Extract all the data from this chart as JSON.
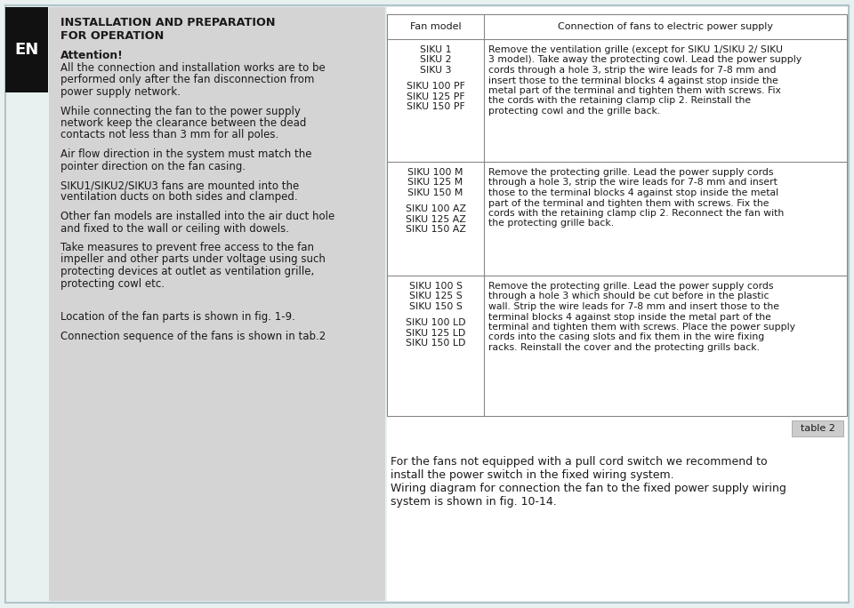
{
  "bg_color": "#d4d4d4",
  "outer_bg": "#e8f0f0",
  "table_bg": "#ffffff",
  "border_color": "#b0c4c8",
  "text_color": "#1a1a1a",
  "left_title_line1": "INSTALLATION AND PREPARATION",
  "left_title_line2": "FOR OPERATION",
  "attention_title": "Attention!",
  "attention_lines": [
    "All the connection and installation works are to be",
    "performed only after the fan disconnection from",
    "power supply network."
  ],
  "para1_lines": [
    "While connecting the fan to the power supply",
    "network keep the clearance between the dead",
    "contacts not less than 3 mm for all poles."
  ],
  "para2_lines": [
    "Air flow direction in the system must match the",
    "pointer direction on the fan casing."
  ],
  "para3_lines": [
    "SIKU1/SIKU2/SIKU3 fans are mounted into the",
    "ventilation ducts on both sides and clamped."
  ],
  "para4_lines": [
    "Other fan models are installed into the air duct hole",
    "and fixed to the wall or ceiling with dowels."
  ],
  "para5_lines": [
    "Take measures to prevent free access to the fan",
    "impeller and other parts under voltage using such",
    "protecting devices at outlet as ventilation grille,",
    "protecting cowl etc."
  ],
  "para6": "Location of the fan parts is shown in fig. 1-9.",
  "para7": "Connection sequence of the fans is shown in tab.2",
  "table_header_col1": "Fan model",
  "table_header_col2": "Connection of fans to electric power supply",
  "row1_models": [
    "SIKU 1",
    "SIKU 2",
    "SIKU 3",
    "",
    "SIKU 100 PF",
    "SIKU 125 PF",
    "SIKU 150 PF"
  ],
  "row1_text": "Remove the ventilation grille (except for SIKU 1/SIKU 2/ SIKU 3 model). Take away the protecting cowl. Lead the power supply cords through a hole 3, strip the wire leads for 7-8 mm and insert those to the terminal blocks 4 against stop inside the metal part of the terminal and tighten them with screws. Fix the cords with the retaining clamp clip 2. Reinstall the protecting cowl and the grille back.",
  "row2_models": [
    "SIKU 100 M",
    "SIKU 125 M",
    "SIKU 150 M",
    "",
    "SIKU 100 AZ",
    "SIKU 125 AZ",
    "SIKU 150 AZ"
  ],
  "row2_text": "Remove the protecting grille. Lead the power supply cords through a hole 3, strip the wire leads for 7-8 mm  and insert those to the terminal blocks 4 against stop inside the metal part of the terminal and tighten them with screws. Fix the cords with the retaining clamp clip 2. Reconnect the fan with the protecting grille back.",
  "row3_models": [
    "SIKU 100 S",
    "SIKU 125 S",
    "SIKU 150 S",
    "",
    "SIKU 100 LD",
    "SIKU 125 LD",
    "SIKU 150 LD"
  ],
  "row3_text": "Remove the protecting grille. Lead the power supply cords through a hole 3 which should be cut before in the plastic wall. Strip the wire leads for 7-8 mm  and insert those to the terminal blocks 4 against stop inside the metal part of the terminal and tighten them with screws. Place the power supply cords into the casing slots and fix them in the wire fixing racks. Reinstall the cover and the protecting grills back.",
  "table2_label": "table 2",
  "bottom_text_lines": [
    "For the fans not equipped with a pull cord switch we recommend to",
    "install the power switch in the fixed wiring system.",
    "Wiring diagram for connection the fan to the fixed power supply wiring",
    "system is shown in fig. 10-14."
  ],
  "en_label": "EN"
}
